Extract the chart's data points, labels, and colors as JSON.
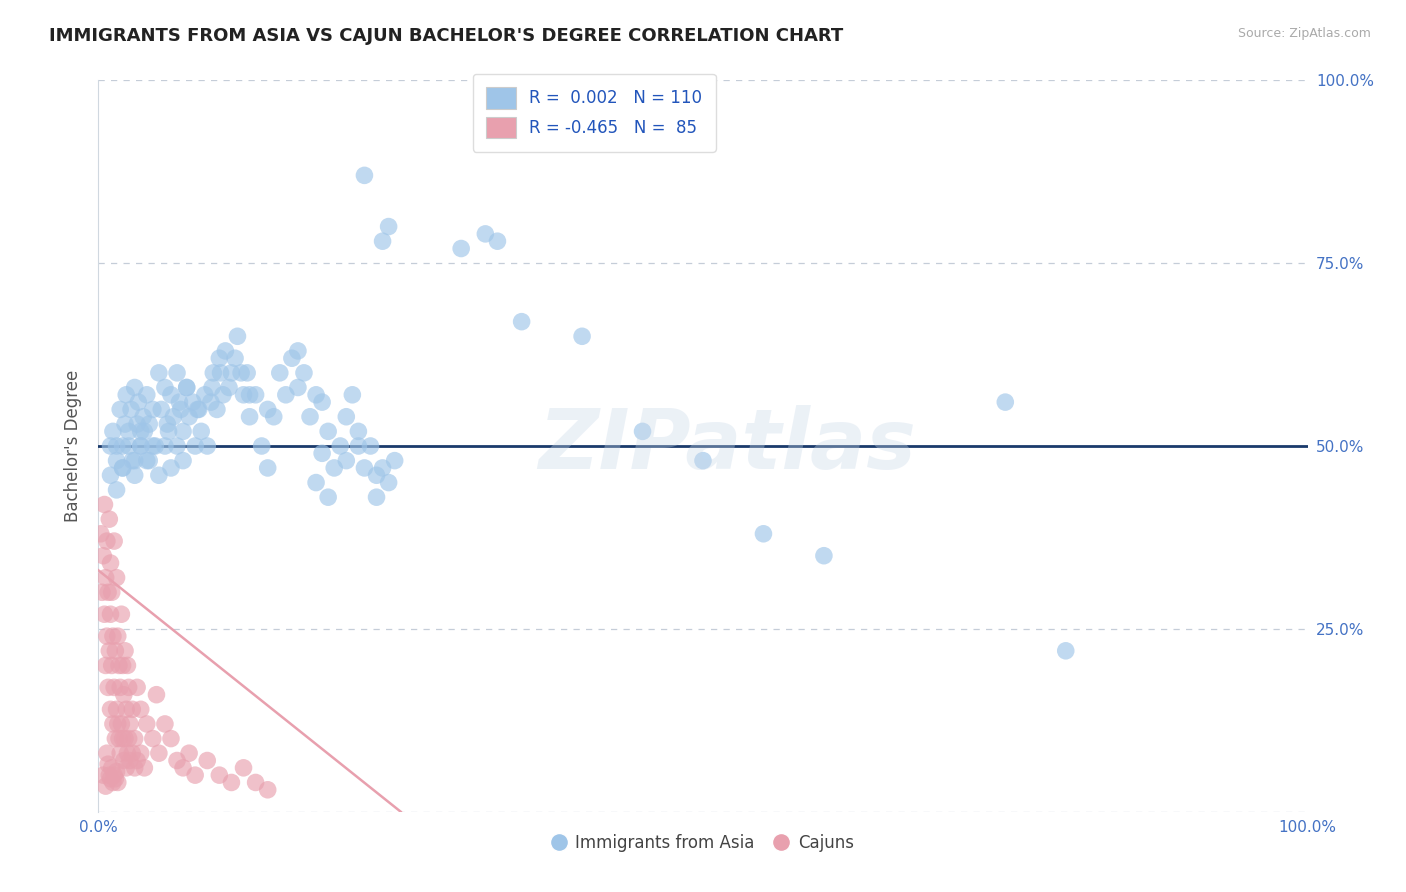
{
  "title": "IMMIGRANTS FROM ASIA VS CAJUN BACHELOR'S DEGREE CORRELATION CHART",
  "source": "Source: ZipAtlas.com",
  "ylabel": "Bachelor's Degree",
  "xlim": [
    0,
    100
  ],
  "ylim": [
    0,
    100
  ],
  "yticks": [
    0,
    25,
    50,
    75,
    100
  ],
  "ytick_labels": [
    "",
    "25.0%",
    "50.0%",
    "75.0%",
    "100.0%"
  ],
  "hline_y": 50,
  "hline_color": "#1a3a6b",
  "grid_color": "#c5cdd8",
  "background_color": "#ffffff",
  "title_color": "#222222",
  "axis_label_color": "#4472c4",
  "watermark": "ZIPatlas",
  "legend_r1": "R =  0.002   N = 110",
  "legend_r2": "R = -0.465   N =  85",
  "blue_color": "#9fc5e8",
  "pink_color": "#e8a0ae",
  "blue_scatter_x": [
    1.0,
    1.2,
    1.5,
    1.8,
    2.0,
    2.2,
    2.3,
    2.5,
    2.7,
    2.8,
    3.0,
    3.2,
    3.3,
    3.5,
    3.7,
    3.8,
    4.0,
    4.2,
    4.5,
    4.7,
    5.0,
    5.2,
    5.5,
    5.7,
    6.0,
    6.2,
    6.5,
    6.8,
    7.0,
    7.3,
    7.5,
    7.8,
    8.0,
    8.3,
    8.5,
    8.8,
    9.0,
    9.3,
    9.5,
    9.8,
    10.0,
    10.3,
    10.5,
    10.8,
    11.0,
    11.3,
    11.5,
    11.8,
    12.0,
    12.3,
    12.5,
    13.0,
    13.5,
    14.0,
    14.5,
    15.0,
    15.5,
    16.0,
    16.5,
    17.0,
    17.5,
    18.0,
    18.5,
    19.0,
    19.5,
    20.0,
    20.5,
    21.0,
    21.5,
    22.0,
    22.5,
    23.0,
    23.5,
    24.0,
    24.5,
    1.5,
    2.0,
    2.5,
    3.0,
    3.5,
    4.0,
    4.5,
    5.0,
    5.5,
    6.0,
    6.5,
    7.0,
    1.0,
    1.5,
    2.0,
    3.0,
    18.0,
    19.0,
    20.5,
    21.5,
    23.0,
    3.5,
    4.2,
    5.8,
    6.7,
    7.3,
    8.2,
    9.4,
    10.1,
    12.5,
    14.0,
    16.5,
    18.5,
    23.5,
    24.0
  ],
  "blue_scatter_y": [
    50.0,
    52.0,
    48.0,
    55.0,
    50.0,
    53.0,
    57.0,
    52.0,
    55.0,
    48.0,
    58.0,
    53.0,
    56.0,
    50.0,
    54.0,
    52.0,
    57.0,
    53.0,
    55.0,
    50.0,
    60.0,
    55.0,
    58.0,
    53.0,
    57.0,
    54.0,
    60.0,
    55.0,
    52.0,
    58.0,
    54.0,
    56.0,
    50.0,
    55.0,
    52.0,
    57.0,
    50.0,
    56.0,
    60.0,
    55.0,
    62.0,
    57.0,
    63.0,
    58.0,
    60.0,
    62.0,
    65.0,
    60.0,
    57.0,
    60.0,
    54.0,
    57.0,
    50.0,
    47.0,
    54.0,
    60.0,
    57.0,
    62.0,
    63.0,
    60.0,
    54.0,
    57.0,
    49.0,
    52.0,
    47.0,
    50.0,
    54.0,
    57.0,
    52.0,
    47.0,
    50.0,
    43.0,
    47.0,
    45.0,
    48.0,
    44.0,
    47.0,
    50.0,
    46.0,
    52.0,
    48.0,
    50.0,
    46.0,
    50.0,
    47.0,
    50.0,
    48.0,
    46.0,
    50.0,
    47.0,
    48.0,
    45.0,
    43.0,
    48.0,
    50.0,
    46.0,
    50.0,
    48.0,
    52.0,
    56.0,
    58.0,
    55.0,
    58.0,
    60.0,
    57.0,
    55.0,
    58.0,
    56.0,
    78.0,
    80.0
  ],
  "blue_outlier_x": [
    22.0,
    30.0,
    32.0,
    33.0,
    35.0,
    40.0,
    45.0,
    50.0,
    55.0,
    60.0,
    75.0,
    80.0
  ],
  "blue_outlier_y": [
    87.0,
    77.0,
    79.0,
    78.0,
    67.0,
    65.0,
    52.0,
    48.0,
    38.0,
    35.0,
    56.0,
    22.0
  ],
  "pink_scatter_x": [
    0.2,
    0.3,
    0.4,
    0.5,
    0.5,
    0.6,
    0.6,
    0.7,
    0.7,
    0.8,
    0.8,
    0.9,
    0.9,
    1.0,
    1.0,
    1.0,
    1.1,
    1.1,
    1.2,
    1.2,
    1.3,
    1.3,
    1.4,
    1.4,
    1.5,
    1.5,
    1.6,
    1.6,
    1.7,
    1.7,
    1.8,
    1.8,
    1.9,
    1.9,
    2.0,
    2.0,
    2.1,
    2.1,
    2.2,
    2.2,
    2.3,
    2.3,
    2.4,
    2.4,
    2.5,
    2.5,
    2.6,
    2.6,
    2.8,
    2.8,
    3.0,
    3.0,
    3.2,
    3.2,
    3.5,
    3.5,
    3.8,
    4.0,
    4.5,
    4.8,
    5.0,
    5.5,
    6.0,
    6.5,
    7.0,
    7.5,
    8.0,
    9.0,
    10.0,
    11.0,
    12.0,
    13.0,
    14.0,
    0.4,
    0.6,
    0.7,
    0.8,
    0.9,
    1.0,
    1.1,
    1.2,
    1.3,
    1.4,
    1.5,
    1.6
  ],
  "pink_scatter_y": [
    38.0,
    30.0,
    35.0,
    42.0,
    27.0,
    20.0,
    32.0,
    24.0,
    37.0,
    17.0,
    30.0,
    22.0,
    40.0,
    14.0,
    27.0,
    34.0,
    20.0,
    30.0,
    12.0,
    24.0,
    17.0,
    37.0,
    10.0,
    22.0,
    14.0,
    32.0,
    12.0,
    24.0,
    10.0,
    20.0,
    8.0,
    17.0,
    12.0,
    27.0,
    10.0,
    20.0,
    7.0,
    16.0,
    10.0,
    22.0,
    6.0,
    14.0,
    8.0,
    20.0,
    10.0,
    17.0,
    7.0,
    12.0,
    8.0,
    14.0,
    6.0,
    10.0,
    7.0,
    17.0,
    8.0,
    14.0,
    6.0,
    12.0,
    10.0,
    16.0,
    8.0,
    12.0,
    10.0,
    7.0,
    6.0,
    8.0,
    5.0,
    7.0,
    5.0,
    4.0,
    6.0,
    4.0,
    3.0,
    5.0,
    3.5,
    8.0,
    6.5,
    5.0,
    4.5,
    6.0,
    4.0,
    5.0,
    4.5,
    5.5,
    4.0
  ],
  "pink_reg_x0": 0.0,
  "pink_reg_y0": 33.0,
  "pink_reg_x1": 25.0,
  "pink_reg_y1": 0.0,
  "title_fontsize": 13,
  "source_fontsize": 9,
  "tick_fontsize": 11
}
